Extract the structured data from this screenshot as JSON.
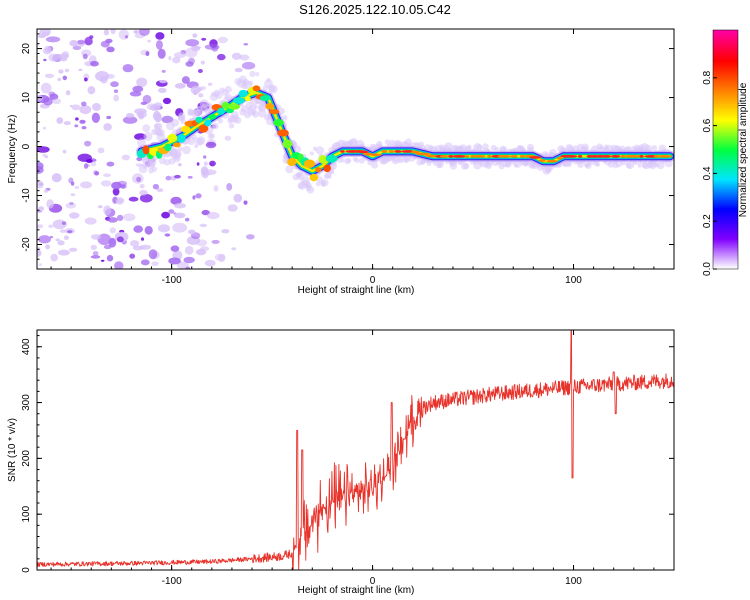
{
  "title": "S126.2025.122.10.05.C42",
  "chart_data": [
    {
      "type": "heatmap",
      "xlabel": "Height of straight line (km)",
      "ylabel": "Frequency (Hz)",
      "xlim": [
        -167,
        150
      ],
      "ylim": [
        -25,
        24
      ],
      "xticks": [
        -100,
        0,
        100
      ],
      "yticks": [
        -20,
        -10,
        0,
        10,
        20
      ],
      "colorbar": {
        "label": "Normalized spectral amplitude",
        "range": [
          0,
          1
        ],
        "ticks": [
          "0.0",
          "0.2",
          "0.4",
          "0.6",
          "0.8"
        ],
        "colormap": [
          "#ffffff",
          "#8000ff",
          "#0000ff",
          "#00e5ff",
          "#00ff40",
          "#ffff00",
          "#ff8000",
          "#ff0000",
          "#ff00a0"
        ]
      },
      "ridge": {
        "x": [
          -115,
          -105,
          -95,
          -88,
          -80,
          -72,
          -65,
          -58,
          -52,
          -48,
          -44,
          -40,
          -35,
          -30,
          -25,
          -20,
          -15,
          -10,
          -5,
          0,
          5,
          10,
          20,
          30,
          40,
          50,
          60,
          70,
          75,
          80,
          85,
          90,
          95,
          100,
          110,
          120,
          130,
          140,
          148
        ],
        "y": [
          -1,
          0,
          2,
          4,
          6,
          8,
          10,
          11,
          10,
          6,
          2,
          -2,
          -4,
          -5,
          -4,
          -2,
          -1,
          -1,
          -1,
          -2,
          -1,
          -1,
          -1,
          -2,
          -2,
          -2,
          -2,
          -2,
          -2,
          -2,
          -3,
          -3,
          -2,
          -2,
          -2,
          -2,
          -2,
          -2,
          -2
        ]
      }
    },
    {
      "type": "line",
      "xlabel": "Height of straight line (km)",
      "ylabel": "SNR (10 * v/v)",
      "xlim": [
        -167,
        150
      ],
      "ylim": [
        0,
        430
      ],
      "xticks": [
        -100,
        0,
        100
      ],
      "yticks": [
        0,
        100,
        200,
        300,
        400
      ],
      "color": "#e8332b",
      "trend": {
        "x": [
          -167,
          -120,
          -80,
          -60,
          -45,
          -40,
          -35,
          -25,
          -15,
          -5,
          5,
          10,
          15,
          20,
          25,
          30,
          40,
          50,
          60,
          80,
          100,
          120,
          140,
          150
        ],
        "y": [
          10,
          12,
          15,
          20,
          25,
          30,
          60,
          110,
          130,
          140,
          160,
          190,
          230,
          270,
          290,
          300,
          305,
          310,
          315,
          322,
          328,
          333,
          338,
          340
        ]
      },
      "spikes": [
        {
          "x": -37.5,
          "y": 250
        },
        {
          "x": -35,
          "y": 215
        },
        {
          "x": 9.5,
          "y": 300
        },
        {
          "x": 99,
          "y": 430
        },
        {
          "x": 99.5,
          "y": 165
        },
        {
          "x": 120,
          "y": 355
        },
        {
          "x": 121,
          "y": 280
        }
      ]
    }
  ]
}
